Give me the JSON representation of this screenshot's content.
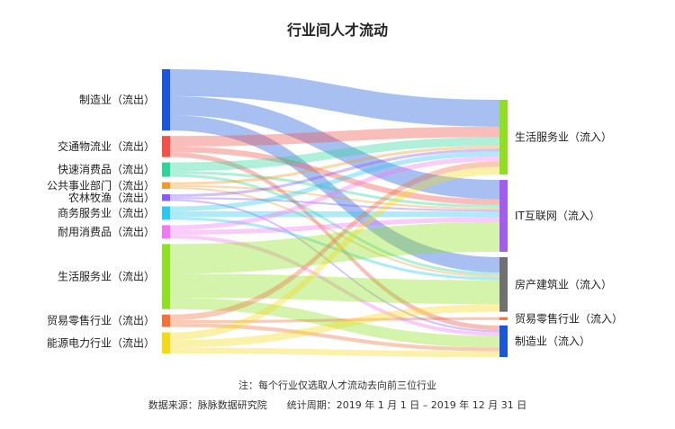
{
  "title": "行业间人才流动",
  "footnote": "注：每个行业仅选取人才流动去向前三位行业",
  "source": "数据来源：脉脉数据研究院",
  "period": "统计周期：2019 年 1 月 1 日 – 2019 年 12 月 31 日",
  "chart_data": {
    "type": "sankey",
    "sources": [
      {
        "id": "mfg_out",
        "label": "制造业（流出）",
        "color": "#1a56db"
      },
      {
        "id": "trans_out",
        "label": "交通物流业（流出）",
        "color": "#f0524a"
      },
      {
        "id": "fmcg_out",
        "label": "快速消费品（流出）",
        "color": "#2fd49a"
      },
      {
        "id": "public_out",
        "label": "公共事业部门（流出）",
        "color": "#f59a2a"
      },
      {
        "id": "agri_out",
        "label": "农林牧渔（流出）",
        "color": "#8b5cf0"
      },
      {
        "id": "biz_out",
        "label": "商务服务业（流出）",
        "color": "#2ec7ef"
      },
      {
        "id": "durable_out",
        "label": "耐用消费品（流出）",
        "color": "#f27af0"
      },
      {
        "id": "life_out",
        "label": "生活服务业（流出）",
        "color": "#8fe021"
      },
      {
        "id": "retail_out",
        "label": "贸易零售行业（流出）",
        "color": "#f0733c"
      },
      {
        "id": "energy_out",
        "label": "能源电力行业（流出）",
        "color": "#f4d91a"
      }
    ],
    "targets": [
      {
        "id": "life_in",
        "label": "生活服务业（流入）",
        "color": "#8fe021"
      },
      {
        "id": "it_in",
        "label": "IT互联网（流入）",
        "color": "#a35cf2"
      },
      {
        "id": "estate_in",
        "label": "房产建筑业（流入）",
        "color": "#707070"
      },
      {
        "id": "retail_in",
        "label": "贸易零售行业（流入）",
        "color": "#f0733c"
      },
      {
        "id": "mfg_in",
        "label": "制造业（流入）",
        "color": "#1a56db"
      }
    ],
    "links": [
      {
        "source": "mfg_out",
        "target": "life_in",
        "value": 28
      },
      {
        "source": "mfg_out",
        "target": "it_in",
        "value": 20
      },
      {
        "source": "mfg_out",
        "target": "estate_in",
        "value": 16
      },
      {
        "source": "trans_out",
        "target": "life_in",
        "value": 11
      },
      {
        "source": "trans_out",
        "target": "it_in",
        "value": 6
      },
      {
        "source": "trans_out",
        "target": "mfg_in",
        "value": 5
      },
      {
        "source": "fmcg_out",
        "target": "life_in",
        "value": 9
      },
      {
        "source": "fmcg_out",
        "target": "it_in",
        "value": 3
      },
      {
        "source": "fmcg_out",
        "target": "estate_in",
        "value": 3
      },
      {
        "source": "public_out",
        "target": "life_in",
        "value": 3
      },
      {
        "source": "public_out",
        "target": "it_in",
        "value": 2
      },
      {
        "source": "public_out",
        "target": "estate_in",
        "value": 2
      },
      {
        "source": "agri_out",
        "target": "life_in",
        "value": 3
      },
      {
        "source": "agri_out",
        "target": "it_in",
        "value": 2
      },
      {
        "source": "agri_out",
        "target": "mfg_in",
        "value": 2
      },
      {
        "source": "biz_out",
        "target": "life_in",
        "value": 5
      },
      {
        "source": "biz_out",
        "target": "it_in",
        "value": 6
      },
      {
        "source": "biz_out",
        "target": "estate_in",
        "value": 3
      },
      {
        "source": "durable_out",
        "target": "life_in",
        "value": 5
      },
      {
        "source": "durable_out",
        "target": "it_in",
        "value": 5
      },
      {
        "source": "durable_out",
        "target": "mfg_in",
        "value": 4
      },
      {
        "source": "life_out",
        "target": "it_in",
        "value": 31
      },
      {
        "source": "life_out",
        "target": "estate_in",
        "value": 25
      },
      {
        "source": "life_out",
        "target": "mfg_in",
        "value": 12
      },
      {
        "source": "retail_out",
        "target": "life_in",
        "value": 6
      },
      {
        "source": "retail_out",
        "target": "retail_in",
        "value": 3
      },
      {
        "source": "retail_out",
        "target": "mfg_in",
        "value": 4
      },
      {
        "source": "energy_out",
        "target": "life_in",
        "value": 8
      },
      {
        "source": "energy_out",
        "target": "estate_in",
        "value": 8
      },
      {
        "source": "energy_out",
        "target": "mfg_in",
        "value": 6
      }
    ]
  }
}
